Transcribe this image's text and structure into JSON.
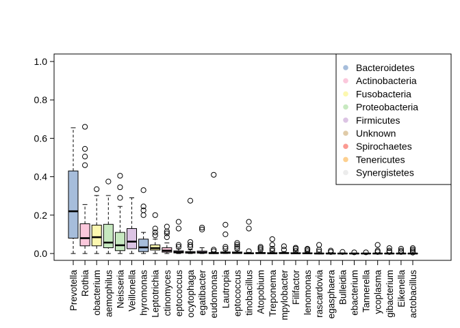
{
  "chart_data": {
    "type": "boxplot",
    "title": "",
    "xlabel": "",
    "ylabel": "",
    "ylim": [
      0,
      1.0
    ],
    "yticks": [
      0.0,
      0.2,
      0.4,
      0.6,
      0.8,
      1.0
    ],
    "ytick_labels": [
      "0.0",
      "0.2",
      "0.4",
      "0.6",
      "0.8",
      "1.0"
    ],
    "legend_position": "top-right",
    "legend": [
      {
        "name": "Bacteroidetes",
        "color": "#a6bddb"
      },
      {
        "name": "Actinobacteria",
        "color": "#fbc8dc"
      },
      {
        "name": "Fusobacteria",
        "color": "#fcf8b0"
      },
      {
        "name": "Proteobacteria",
        "color": "#c7e9c0"
      },
      {
        "name": "Firmicutes",
        "color": "#dcc4e4"
      },
      {
        "name": "Unknown",
        "color": "#e0cba8"
      },
      {
        "name": "Spirochaetes",
        "color": "#fb9a92"
      },
      {
        "name": "Tenericutes",
        "color": "#fdd090"
      },
      {
        "name": "Synergistetes",
        "color": "#ececec"
      }
    ],
    "boxes": [
      {
        "label": "Prevotella",
        "phylum": 0,
        "min": 0.0,
        "q1": 0.08,
        "median": 0.22,
        "q3": 0.43,
        "max": 0.655,
        "outliers": []
      },
      {
        "label": "Rothia",
        "phylum": 1,
        "min": 0.0,
        "q1": 0.04,
        "median": 0.08,
        "q3": 0.155,
        "max": 0.255,
        "outliers": [
          0.46,
          0.505,
          0.545,
          0.66
        ]
      },
      {
        "label": "obacterium",
        "phylum": 2,
        "min": 0.0,
        "q1": 0.04,
        "median": 0.085,
        "q3": 0.148,
        "max": 0.302,
        "outliers": [
          0.335
        ]
      },
      {
        "label": "aemophilus",
        "phylum": 3,
        "min": 0.0,
        "q1": 0.03,
        "median": 0.057,
        "q3": 0.152,
        "max": 0.302,
        "outliers": [
          0.375
        ]
      },
      {
        "label": "Neisseria",
        "phylum": 3,
        "min": 0.0,
        "q1": 0.015,
        "median": 0.043,
        "q3": 0.11,
        "max": 0.245,
        "outliers": [
          0.29,
          0.345,
          0.405
        ]
      },
      {
        "label": "Veillonella",
        "phylum": 4,
        "min": 0.0,
        "q1": 0.025,
        "median": 0.062,
        "q3": 0.13,
        "max": 0.29,
        "outliers": []
      },
      {
        "label": "hyromonas",
        "phylum": 0,
        "min": 0.0,
        "q1": 0.01,
        "median": 0.032,
        "q3": 0.075,
        "max": 0.11,
        "outliers": [
          0.2,
          0.225,
          0.245,
          0.33
        ]
      },
      {
        "label": "Leptotrichia",
        "phylum": 2,
        "min": 0.0,
        "q1": 0.018,
        "median": 0.028,
        "q3": 0.045,
        "max": 0.075,
        "outliers": [
          0.095,
          0.11,
          0.13,
          0.2
        ]
      },
      {
        "label": "ctinomyces",
        "phylum": 1,
        "min": 0.0,
        "q1": 0.007,
        "median": 0.015,
        "q3": 0.03,
        "max": 0.055,
        "outliers": [
          0.085,
          0.105,
          0.115,
          0.14
        ]
      },
      {
        "label": "eptococcus",
        "phylum": 4,
        "min": 0.0,
        "q1": 0.003,
        "median": 0.007,
        "q3": 0.014,
        "max": 0.025,
        "outliers": [
          0.035,
          0.045,
          0.13,
          0.165
        ]
      },
      {
        "label": "ocytophaga",
        "phylum": 0,
        "min": 0.0,
        "q1": 0.002,
        "median": 0.005,
        "q3": 0.01,
        "max": 0.02,
        "outliers": [
          0.035,
          0.045,
          0.06,
          0.275
        ]
      },
      {
        "label": "egatibacter",
        "phylum": 4,
        "min": 0.0,
        "q1": 0.002,
        "median": 0.005,
        "q3": 0.013,
        "max": 0.03,
        "outliers": [
          0.125,
          0.135
        ]
      },
      {
        "label": "eudomonas",
        "phylum": 3,
        "min": 0.0,
        "q1": 0.0,
        "median": 0.002,
        "q3": 0.005,
        "max": 0.008,
        "outliers": [
          0.012,
          0.02,
          0.41
        ]
      },
      {
        "label": "Lautropia",
        "phylum": 3,
        "min": 0.0,
        "q1": 0.001,
        "median": 0.004,
        "q3": 0.008,
        "max": 0.015,
        "outliers": [
          0.025,
          0.035,
          0.1,
          0.15
        ]
      },
      {
        "label": "eptococcus",
        "phylum": 4,
        "min": 0.0,
        "q1": 0.001,
        "median": 0.003,
        "q3": 0.008,
        "max": 0.015,
        "outliers": [
          0.025,
          0.035,
          0.045,
          0.055
        ]
      },
      {
        "label": "tinobacillus",
        "phylum": 3,
        "min": 0.0,
        "q1": 0.0,
        "median": 0.001,
        "q3": 0.003,
        "max": 0.006,
        "outliers": [
          0.012,
          0.13,
          0.165
        ]
      },
      {
        "label": "Atopobium",
        "phylum": 1,
        "min": 0.0,
        "q1": 0.0,
        "median": 0.002,
        "q3": 0.005,
        "max": 0.01,
        "outliers": [
          0.02,
          0.028,
          0.035
        ]
      },
      {
        "label": "Treponema",
        "phylum": 6,
        "min": 0.0,
        "q1": 0.0,
        "median": 0.001,
        "q3": 0.004,
        "max": 0.008,
        "outliers": [
          0.015,
          0.025,
          0.045,
          0.075
        ]
      },
      {
        "label": "mpylobacter",
        "phylum": 3,
        "min": 0.0,
        "q1": 0.0,
        "median": 0.002,
        "q3": 0.005,
        "max": 0.01,
        "outliers": [
          0.02,
          0.038
        ]
      },
      {
        "label": "Filifactor",
        "phylum": 4,
        "min": 0.0,
        "q1": 0.0,
        "median": 0.001,
        "q3": 0.004,
        "max": 0.008,
        "outliers": [
          0.015,
          0.025,
          0.03
        ]
      },
      {
        "label": "lenomonas",
        "phylum": 4,
        "min": 0.0,
        "q1": 0.0,
        "median": 0.001,
        "q3": 0.003,
        "max": 0.006,
        "outliers": [
          0.012,
          0.02,
          0.025
        ]
      },
      {
        "label": "rascardovia",
        "phylum": 1,
        "min": 0.0,
        "q1": 0.0,
        "median": 0.0,
        "q3": 0.002,
        "max": 0.004,
        "outliers": [
          0.01,
          0.02,
          0.045
        ]
      },
      {
        "label": "egasphaera",
        "phylum": 4,
        "min": 0.0,
        "q1": 0.0,
        "median": 0.0,
        "q3": 0.002,
        "max": 0.004,
        "outliers": [
          0.008,
          0.015
        ]
      },
      {
        "label": "Bulleidia",
        "phylum": 4,
        "min": 0.0,
        "q1": 0.0,
        "median": 0.0,
        "q3": 0.001,
        "max": 0.003,
        "outliers": [
          0.008
        ]
      },
      {
        "label": "ebacterium",
        "phylum": 4,
        "min": 0.0,
        "q1": 0.0,
        "median": 0.0,
        "q3": 0.001,
        "max": 0.002,
        "outliers": [
          0.006
        ]
      },
      {
        "label": "Tannerella",
        "phylum": 0,
        "min": 0.0,
        "q1": 0.0,
        "median": 0.0,
        "q3": 0.001,
        "max": 0.002,
        "outliers": [
          0.006
        ]
      },
      {
        "label": "ycoplasma",
        "phylum": 7,
        "min": 0.0,
        "q1": 0.0,
        "median": 0.0,
        "q3": 0.001,
        "max": 0.002,
        "outliers": [
          0.008,
          0.015,
          0.045
        ]
      },
      {
        "label": "gibacterium",
        "phylum": 8,
        "min": 0.0,
        "q1": 0.0,
        "median": 0.0,
        "q3": 0.001,
        "max": 0.002,
        "outliers": [
          0.008,
          0.015,
          0.028
        ]
      },
      {
        "label": "Eikenella",
        "phylum": 3,
        "min": 0.0,
        "q1": 0.0,
        "median": 0.0,
        "q3": 0.001,
        "max": 0.002,
        "outliers": [
          0.008,
          0.015,
          0.025
        ]
      },
      {
        "label": "actobacillus",
        "phylum": 4,
        "min": 0.0,
        "q1": 0.0,
        "median": 0.0,
        "q3": 0.001,
        "max": 0.002,
        "outliers": [
          0.005,
          0.012,
          0.02,
          0.028
        ]
      }
    ]
  }
}
